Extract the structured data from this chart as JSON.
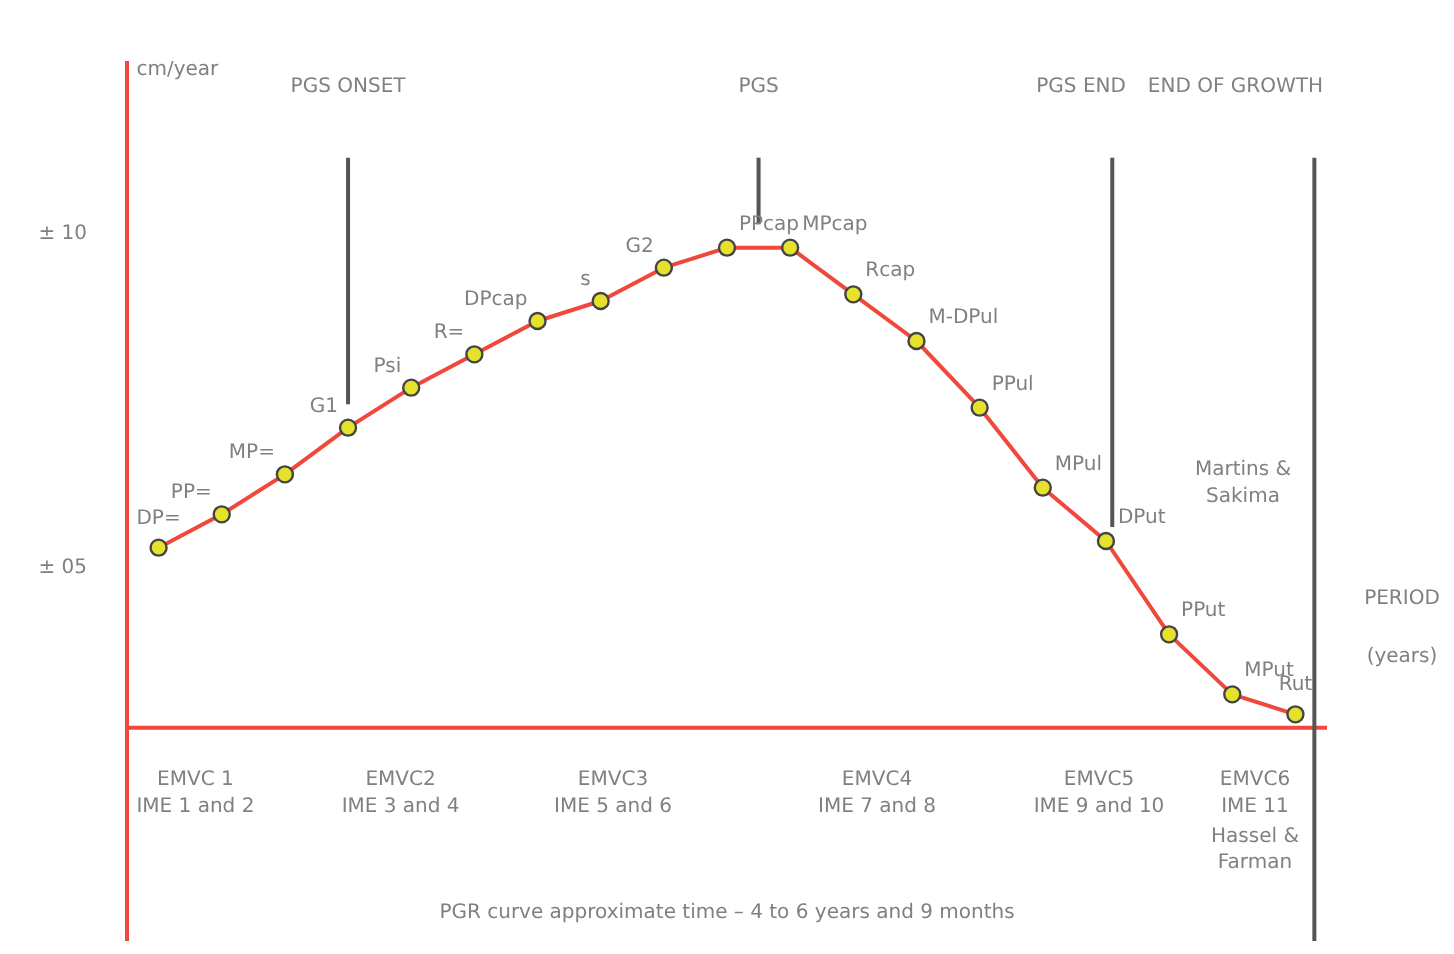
{
  "chart_data": {
    "type": "line",
    "ylabel": "cm/year",
    "xlabel": "PERIOD (years)",
    "ylim": [
      -0.6,
      12.6
    ],
    "yticks": [
      {
        "value": 5,
        "label": "± 05"
      },
      {
        "value": 10,
        "label": "± 10"
      }
    ],
    "grid": false,
    "marker": "circle",
    "line_style": "solid",
    "categories": [
      null,
      null,
      null,
      null,
      null,
      null,
      null,
      null,
      null,
      null,
      null,
      null,
      null,
      null,
      null,
      null,
      null,
      null,
      null
    ],
    "series": [
      {
        "color": "#f0483c",
        "values": [
          5.3,
          5.8,
          6.4,
          7.1,
          7.7,
          8.2,
          8.7,
          9.0,
          9.5,
          9.8,
          9.8,
          9.1,
          8.4,
          7.4,
          6.2,
          5.4,
          4.0,
          3.1,
          2.8
        ]
      }
    ],
    "ref_lines": [
      {
        "axis": "y",
        "value": 2.6,
        "color": "#f0483c"
      }
    ],
    "annotations": [
      "DP=",
      "PP=",
      "MP=",
      "G1",
      "Psi",
      "R=",
      "DPcap",
      "s",
      "G2",
      "PPcap",
      "MPcap",
      "Rcap",
      "M-DPul",
      "PPul",
      "MPul",
      "DPut",
      "PPut",
      "MPut",
      "Rut",
      "PGS ONSET",
      "PGS",
      "PGS  END",
      "END OF GROWTH",
      "EMVC 1\nIME 1 and 2",
      "EMVC2\nIME 3 and 4",
      "EMVC3\nIME 5 and 6",
      "EMVC4\nIME 7 and 8",
      "EMVC5\nIME 9 and 10",
      "EMVC6\nIME 11",
      "Martins & Sakima",
      "Hassel & Farman",
      "PGR curve approximate time – 4 to 6 years and 9 months"
    ]
  }
}
